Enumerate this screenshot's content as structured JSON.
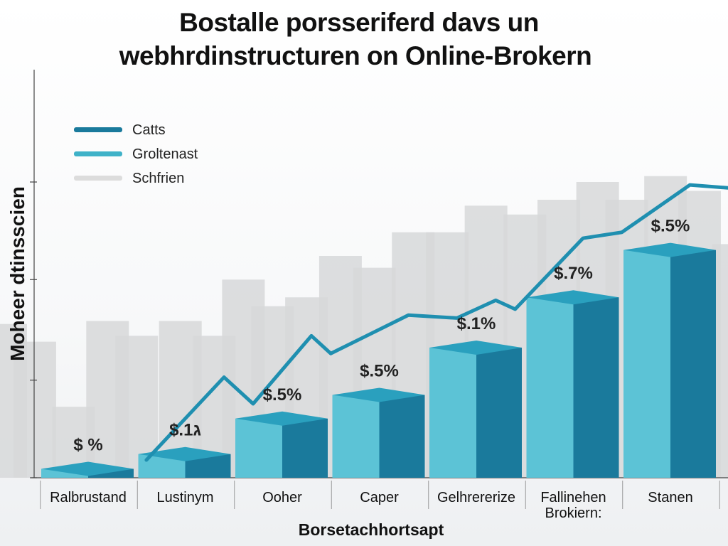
{
  "chart_data": {
    "type": "bar",
    "title_lines": [
      "Bostalle porsseriferd davs un",
      "webhrdinstructuren on Online-Brokern"
    ],
    "xlabel": "Borsetachhortsapt",
    "ylabel": "Moheer dtinsscien",
    "categories": [
      [
        "Ralbrustand"
      ],
      [
        "Lustinym"
      ],
      [
        "Ooher"
      ],
      [
        "Caper"
      ],
      [
        "Gelhrererize"
      ],
      [
        "Fallinehen",
        "Brokiern:"
      ],
      [
        "Stanen"
      ]
    ],
    "ylim": [
      0,
      100
    ],
    "yticks": [
      0,
      33,
      67,
      100
    ],
    "legend": {
      "placement": "top-left",
      "items": [
        {
          "name": "Catts",
          "color": "#1a7a9c"
        },
        {
          "name": "Groltenast",
          "color": "#3fb2c8"
        },
        {
          "name": "Schfrien",
          "color": "#dcdcdc"
        }
      ]
    },
    "bars": {
      "values": [
        3,
        8,
        20,
        28,
        44,
        61,
        77
      ],
      "labels": [
        "$ %",
        "$.1ג",
        "$.5%",
        "$.5%",
        "$.1%",
        "$.7%",
        "$.5%"
      ],
      "front_color": "#5cc3d6",
      "side_color": "#1a7a9c",
      "top_color": "#2aa0be"
    },
    "trend_line": {
      "color": "#1f8fb0",
      "x": [
        0.6,
        1.4,
        1.7,
        2.3,
        2.5,
        3.3,
        3.8,
        4.2,
        4.4,
        5.1,
        5.5,
        6.2,
        6.6
      ],
      "values": [
        6,
        34,
        25,
        48,
        42,
        55,
        54,
        60,
        57,
        81,
        83,
        99,
        98
      ]
    },
    "background_bars": {
      "color": "#d7d8d9",
      "x": [
        -0.85,
        -0.55,
        -0.15,
        0.2,
        0.5,
        0.95,
        1.3,
        1.6,
        1.9,
        2.25,
        2.6,
        2.95,
        3.35,
        3.7,
        4.1,
        4.5,
        4.85,
        5.25,
        5.55,
        5.95,
        6.3,
        6.65
      ],
      "values": [
        52,
        46,
        24,
        53,
        48,
        53,
        48,
        67,
        58,
        61,
        75,
        71,
        83,
        83,
        92,
        89,
        94,
        100,
        94,
        102,
        97,
        79
      ]
    }
  }
}
